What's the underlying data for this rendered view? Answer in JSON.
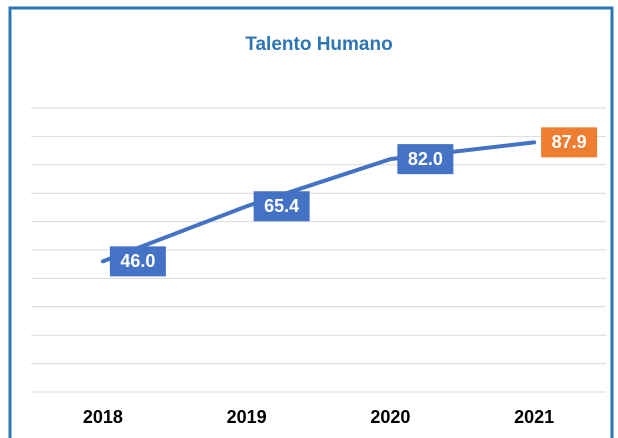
{
  "chart_data": {
    "type": "line",
    "title": "Talento Humano",
    "categories": [
      "2018",
      "2019",
      "2020",
      "2021"
    ],
    "values": [
      46.0,
      65.4,
      82.0,
      87.9
    ],
    "value_labels": [
      "46.0",
      "65.4",
      "82.0",
      "87.9"
    ],
    "color": "#4472c4",
    "label_colors": [
      "#4472c4",
      "#4472c4",
      "#4472c4",
      "#ed7d31"
    ],
    "ylim": [
      0,
      100
    ],
    "yticks": [
      0,
      10,
      20,
      30,
      40,
      50,
      60,
      70,
      80,
      90,
      100
    ],
    "grid": true
  }
}
